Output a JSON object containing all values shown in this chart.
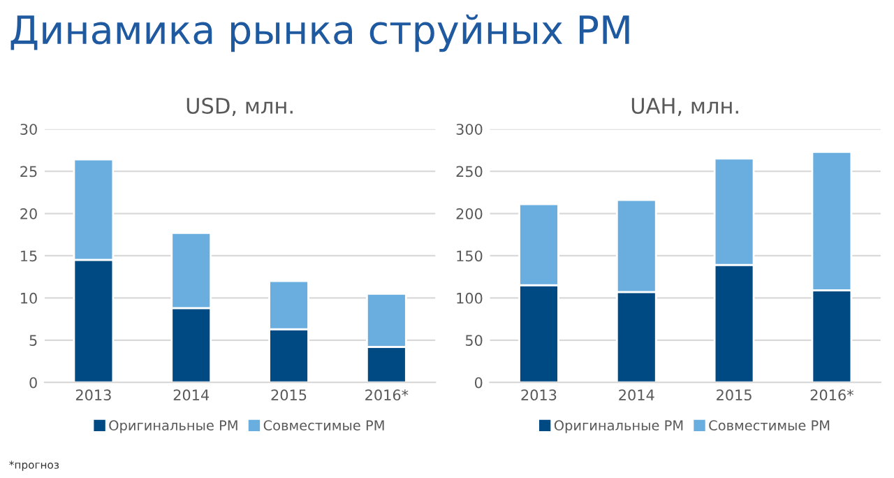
{
  "chart_data": [
    {
      "type": "bar",
      "title": "Динамика рынка струйных РМ",
      "subtitle": "USD, млн.",
      "categories": [
        "2013",
        "2014",
        "2015",
        "2016*"
      ],
      "stacked": true,
      "series": [
        {
          "name": "Оригинальные РМ",
          "color": "#004a84",
          "values": [
            14.5,
            8.8,
            6.3,
            4.2
          ]
        },
        {
          "name": "Совместимые РМ",
          "color": "#6aaee0",
          "values": [
            11.9,
            8.9,
            5.7,
            6.3
          ]
        }
      ],
      "ylim": [
        0,
        30
      ],
      "yticks": [
        0,
        5,
        10,
        15,
        20,
        25,
        30
      ],
      "grid": "y",
      "legend": "bottom",
      "annotations": [
        "*прогноз"
      ]
    },
    {
      "type": "bar",
      "subtitle": "UAH, млн.",
      "categories": [
        "2013",
        "2014",
        "2015",
        "2016*"
      ],
      "stacked": true,
      "series": [
        {
          "name": "Оригинальные РМ",
          "color": "#004a84",
          "values": [
            115,
            107,
            139,
            109
          ]
        },
        {
          "name": "Совместимые РМ",
          "color": "#6aaee0",
          "values": [
            96,
            109,
            126,
            164
          ]
        }
      ],
      "ylim": [
        0,
        300
      ],
      "yticks": [
        0,
        50,
        100,
        150,
        200,
        250,
        300
      ],
      "grid": "y",
      "legend": "bottom"
    }
  ]
}
